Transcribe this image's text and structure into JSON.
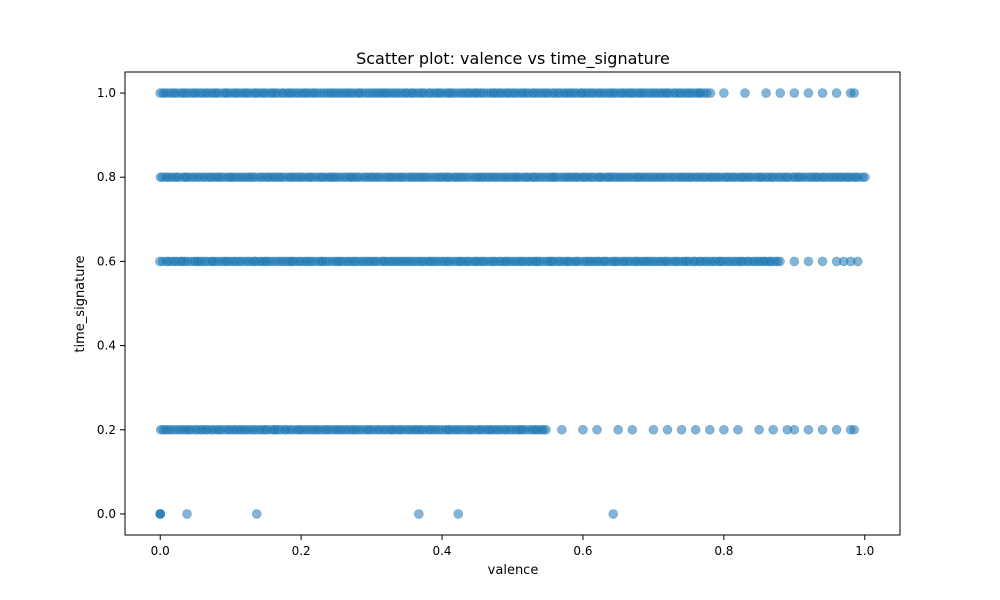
{
  "chart_data": {
    "type": "scatter",
    "title": "Scatter plot: valence vs time_signature",
    "xlabel": "valence",
    "ylabel": "time_signature",
    "xlim": [
      -0.05,
      1.05
    ],
    "ylim": [
      -0.05,
      1.05
    ],
    "x_ticks": [
      "0.0",
      "0.2",
      "0.4",
      "0.6",
      "0.8",
      "1.0"
    ],
    "y_ticks": [
      "0.0",
      "0.2",
      "0.4",
      "0.6",
      "0.8",
      "1.0"
    ],
    "grid": false,
    "marker_color": "#1f77b4",
    "marker_alpha": 0.55,
    "bands": [
      {
        "y": 1.0,
        "x_dense_range": [
          0.0,
          0.78
        ],
        "x_sparse": [
          0.8,
          0.83,
          0.86,
          0.88,
          0.9,
          0.92,
          0.94,
          0.96,
          0.98,
          0.985
        ]
      },
      {
        "y": 0.8,
        "x_dense_range": [
          0.0,
          1.0
        ],
        "x_sparse": []
      },
      {
        "y": 0.6,
        "x_dense_range": [
          0.0,
          0.88
        ],
        "x_sparse": [
          0.9,
          0.92,
          0.94,
          0.96,
          0.97,
          0.98,
          0.99
        ]
      },
      {
        "y": 0.2,
        "x_dense_range": [
          0.0,
          0.55
        ],
        "x_sparse": [
          0.57,
          0.6,
          0.62,
          0.65,
          0.67,
          0.7,
          0.72,
          0.74,
          0.76,
          0.78,
          0.8,
          0.82,
          0.85,
          0.87,
          0.89,
          0.9,
          0.92,
          0.94,
          0.96,
          0.98,
          0.985
        ]
      }
    ],
    "points_y0": [
      0.0,
      0.0,
      0.0,
      0.038,
      0.137,
      0.367,
      0.423,
      0.643
    ]
  }
}
